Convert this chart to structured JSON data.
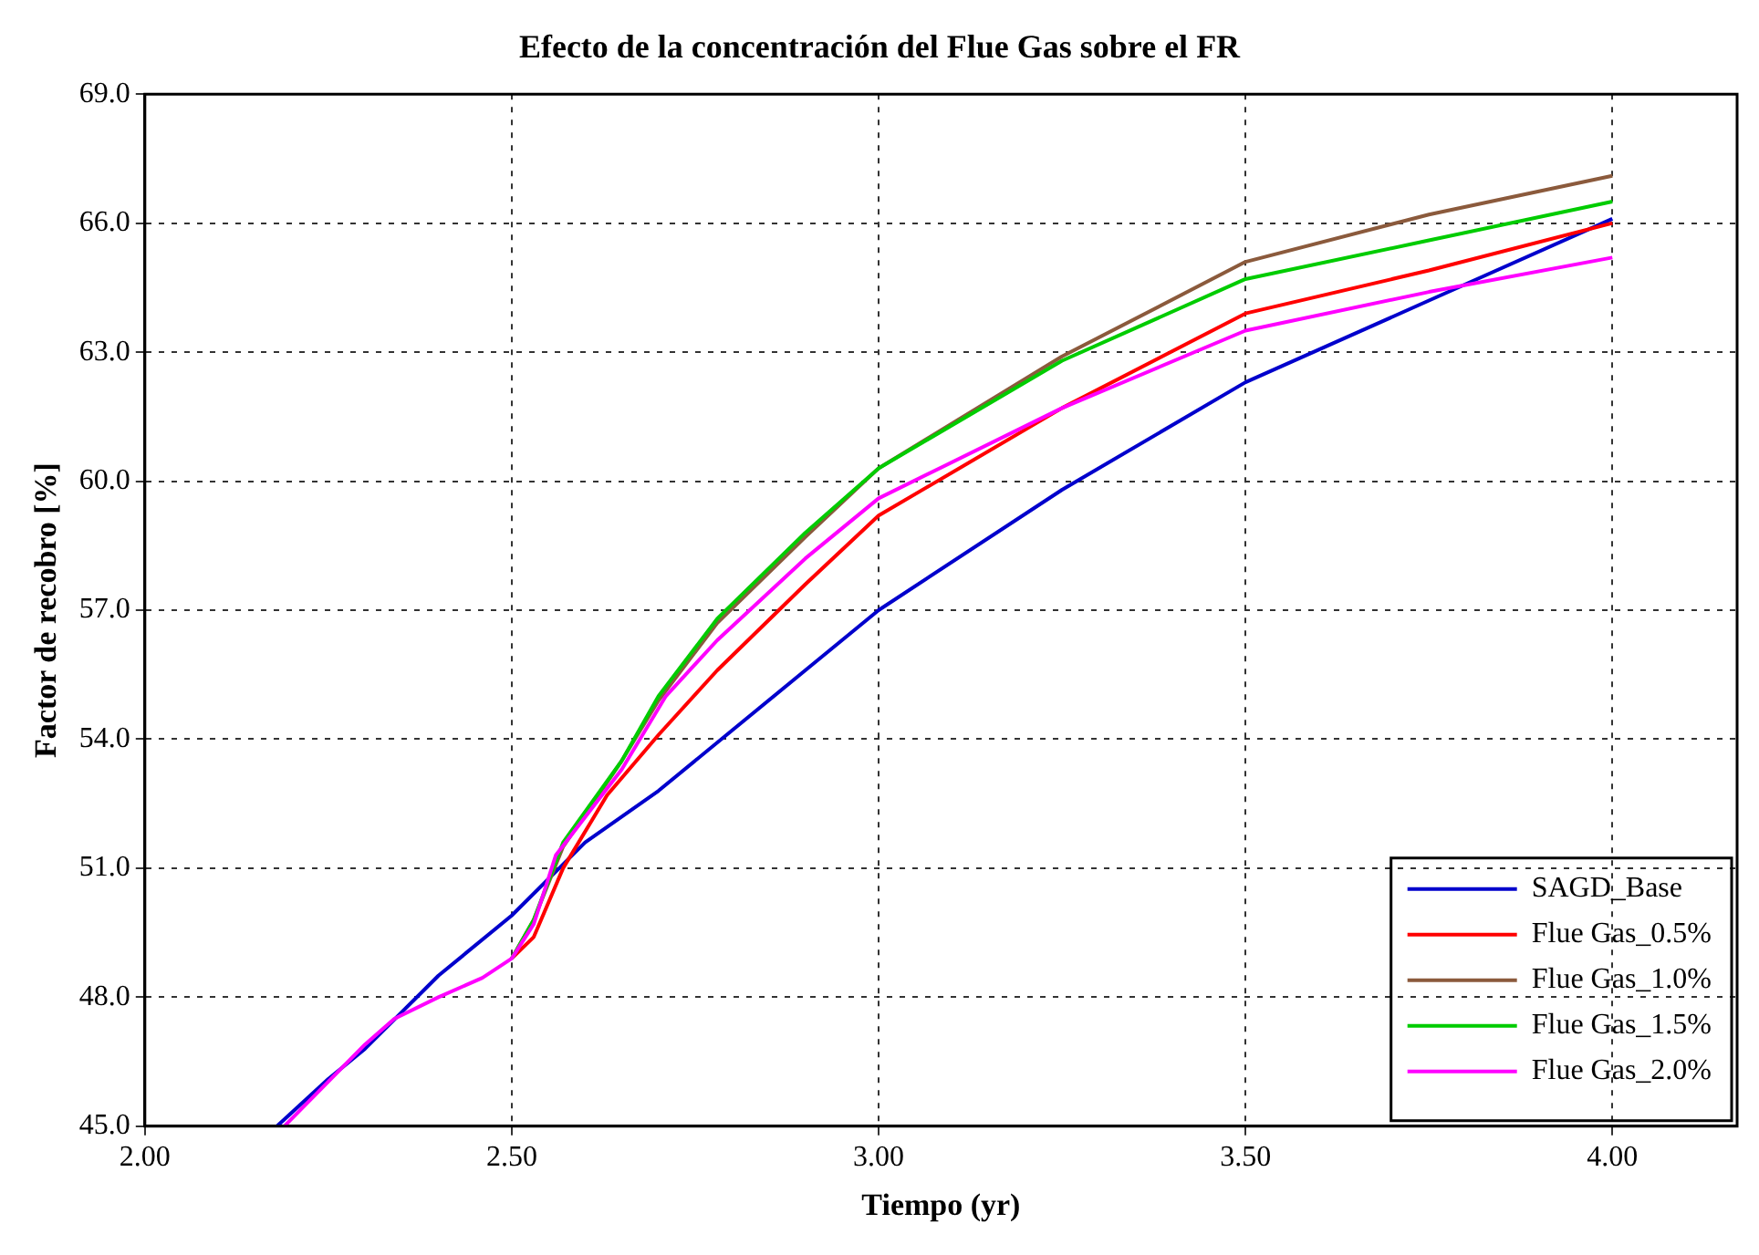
{
  "chart_data": {
    "type": "line",
    "title": "Efecto de la concentración del Flue Gas sobre el FR",
    "xlabel": "Tiempo (yr)",
    "ylabel": "Factor de recobro [%]",
    "xlim": [
      2.0,
      4.17
    ],
    "xticks": [
      {
        "value": 2,
        "label": "2.00"
      },
      {
        "value": 2.5,
        "label": "2.50"
      },
      {
        "value": 3,
        "label": "3.00"
      },
      {
        "value": 3.5,
        "label": "3.50"
      },
      {
        "value": 4,
        "label": "4.00"
      }
    ],
    "ylim": [
      45,
      69
    ],
    "yticks": [
      {
        "value": 45,
        "label": "45.0"
      },
      {
        "value": 48,
        "label": "48.0"
      },
      {
        "value": 51,
        "label": "51.0"
      },
      {
        "value": 54,
        "label": "54.0"
      },
      {
        "value": 57,
        "label": "57.0"
      },
      {
        "value": 60,
        "label": "60.0"
      },
      {
        "value": 63,
        "label": "63.0"
      },
      {
        "value": 66,
        "label": "66.0"
      },
      {
        "value": 69,
        "label": "69.0"
      }
    ],
    "grid": true,
    "legend": "bottom right",
    "marker": "none",
    "line_style": "solid",
    "series": [
      {
        "name": "SAGD_Base",
        "color": "#0000cc",
        "x": [
          2.18,
          2.25,
          2.3,
          2.4,
          2.5,
          2.6,
          2.7,
          2.8,
          2.9,
          3.0,
          3.25,
          3.5,
          3.75,
          4.0
        ],
        "values": [
          45.0,
          46.1,
          46.8,
          48.5,
          49.9,
          51.6,
          52.8,
          54.2,
          55.6,
          57.0,
          59.8,
          62.3,
          64.2,
          66.1
        ]
      },
      {
        "name": "Flue Gas_0.5%",
        "color": "#ff0000",
        "x": [
          2.5,
          2.53,
          2.57,
          2.63,
          2.7,
          2.78,
          2.9,
          3.0,
          3.25,
          3.5,
          3.75,
          4.0
        ],
        "values": [
          48.9,
          49.4,
          51.0,
          52.7,
          54.1,
          55.6,
          57.6,
          59.2,
          61.7,
          63.9,
          64.9,
          66.0
        ]
      },
      {
        "name": "Flue Gas_1.0%",
        "color": "#8b5a3c",
        "x": [
          2.5,
          2.53,
          2.57,
          2.65,
          2.7,
          2.78,
          2.9,
          3.0,
          3.25,
          3.5,
          3.75,
          4.0
        ],
        "values": [
          48.9,
          49.8,
          51.5,
          53.5,
          54.9,
          56.7,
          58.7,
          60.3,
          62.9,
          65.1,
          66.2,
          67.1
        ]
      },
      {
        "name": "Flue Gas_1.5%",
        "color": "#00cc00",
        "x": [
          2.5,
          2.53,
          2.57,
          2.65,
          2.7,
          2.78,
          2.9,
          3.0,
          3.25,
          3.5,
          3.75,
          4.0
        ],
        "values": [
          48.9,
          49.8,
          51.6,
          53.5,
          55.0,
          56.8,
          58.8,
          60.3,
          62.8,
          64.7,
          65.6,
          66.5
        ]
      },
      {
        "name": "Flue Gas_2.0%",
        "color": "#ff00ff",
        "x": [
          2.19,
          2.3,
          2.34,
          2.4,
          2.46,
          2.5,
          2.53,
          2.56,
          2.65,
          2.71,
          2.78,
          2.9,
          3.0,
          3.25,
          3.5,
          3.75,
          4.0
        ],
        "values": [
          45.0,
          46.9,
          47.5,
          48.0,
          48.45,
          48.9,
          49.7,
          51.3,
          53.3,
          55.0,
          56.3,
          58.2,
          59.6,
          61.7,
          63.5,
          64.4,
          65.2
        ]
      }
    ]
  }
}
